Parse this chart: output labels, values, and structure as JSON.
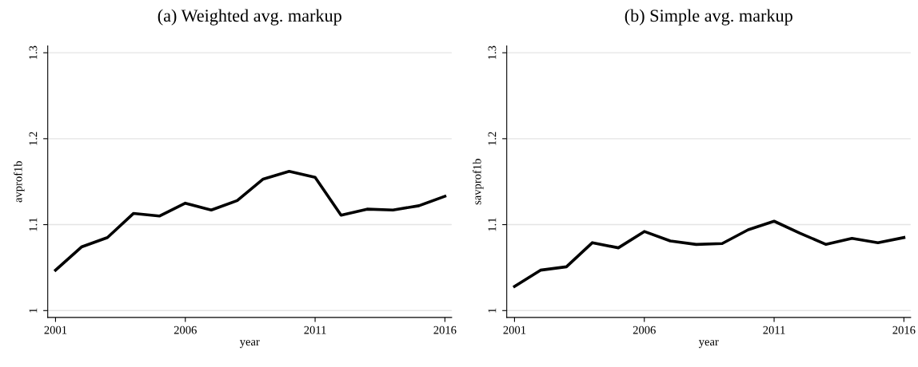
{
  "chart_data": [
    {
      "type": "line",
      "title": "(a) Weighted avg. markup",
      "xlabel": "year",
      "ylabel": "avprof1b",
      "x": [
        2001,
        2002,
        2003,
        2004,
        2005,
        2006,
        2007,
        2008,
        2009,
        2010,
        2011,
        2012,
        2013,
        2014,
        2015,
        2016
      ],
      "series": [
        {
          "color": "#000000",
          "values": [
            1.047,
            1.074,
            1.085,
            1.113,
            1.11,
            1.125,
            1.117,
            1.128,
            1.153,
            1.162,
            1.155,
            1.111,
            1.118,
            1.117,
            1.122,
            1.133
          ]
        }
      ],
      "xlim": [
        2000.7,
        2016.26
      ],
      "xticks": [
        2001,
        2006,
        2011,
        2016
      ],
      "ylim": [
        0.992,
        1.308
      ],
      "yticks": [
        1,
        1.1,
        1.2,
        1.3
      ],
      "grid": "y",
      "line_style": "solid"
    },
    {
      "type": "line",
      "title": "(b) Simple avg. markup",
      "xlabel": "year",
      "ylabel": "savprof1b",
      "x": [
        2001,
        2002,
        2003,
        2004,
        2005,
        2006,
        2007,
        2008,
        2009,
        2010,
        2011,
        2012,
        2013,
        2014,
        2015,
        2016
      ],
      "series": [
        {
          "color": "#000000",
          "values": [
            1.028,
            1.047,
            1.051,
            1.079,
            1.073,
            1.092,
            1.081,
            1.077,
            1.078,
            1.094,
            1.104,
            1.09,
            1.077,
            1.084,
            1.079,
            1.085
          ]
        }
      ],
      "xlim": [
        2000.7,
        2016.26
      ],
      "xticks": [
        2001,
        2006,
        2011,
        2016
      ],
      "ylim": [
        0.992,
        1.308
      ],
      "yticks": [
        1,
        1.1,
        1.2,
        1.3
      ],
      "grid": "y",
      "line_style": "solid"
    }
  ]
}
